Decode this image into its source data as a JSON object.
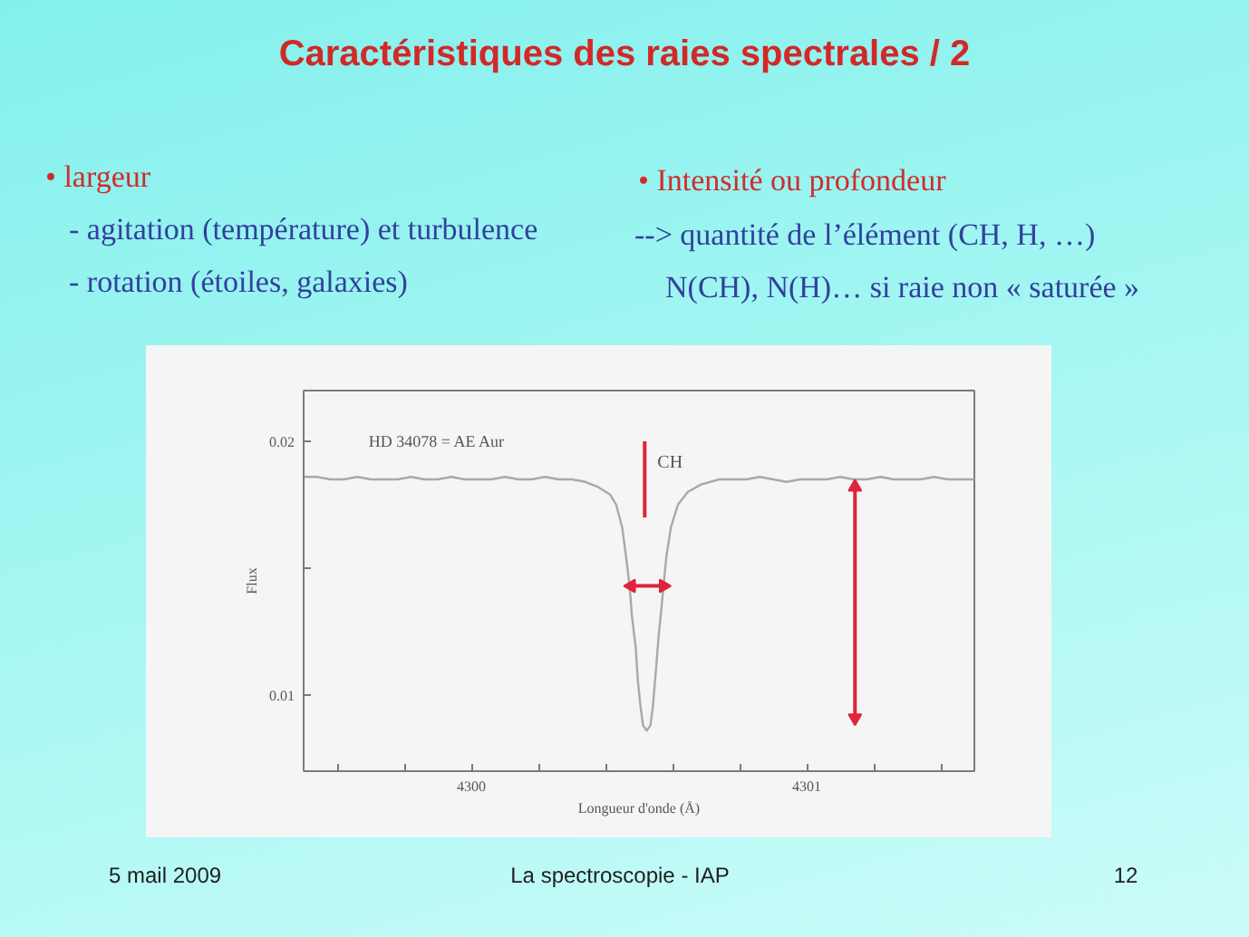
{
  "chart_data": {
    "type": "line",
    "title": "Caractéristiques des raies spectrales / 2",
    "xlabel": "Longueur d'onde (Å)",
    "ylabel": "Flux",
    "annotations": [
      "• largeur",
      "- agitation (température) et turbulence",
      "- rotation (étoiles, galaxies)",
      "• Intensité ou profondeur",
      "--> quantité de l’élément (CH, H, …)",
      "N(CH), N(H)… si raie non « saturée »",
      "HD 34078 = AE Aur",
      "5 mail 2009",
      "La spectroscopie - IAP",
      "12"
    ],
    "xlim": [
      4299.5,
      4301.5
    ],
    "ylim": [
      0.007,
      0.022
    ],
    "xticks": [
      {
        "value": 4299.6,
        "label": null
      },
      {
        "value": 4299.8,
        "label": null
      },
      4300,
      {
        "value": 4300.2,
        "label": null
      },
      {
        "value": 4300.4,
        "label": null
      },
      {
        "value": 4300.6,
        "label": null
      },
      {
        "value": 4300.8,
        "label": null
      },
      4301,
      {
        "value": 4301.2,
        "label": null
      },
      {
        "value": 4301.4,
        "label": null
      }
    ],
    "yticks": [
      0.01,
      {
        "value": 0.015,
        "label": null
      },
      0.02
    ],
    "series": [
      {
        "color": "#a9a9a9",
        "x": [
          4299.5,
          4299.54,
          4299.58,
          4299.62,
          4299.66,
          4299.7,
          4299.74,
          4299.78,
          4299.82,
          4299.86,
          4299.9,
          4299.94,
          4299.98,
          4300.02,
          4300.06,
          4300.1,
          4300.14,
          4300.18,
          4300.22,
          4300.26,
          4300.3,
          4300.34,
          4300.378,
          4300.414,
          4300.432,
          4300.45,
          4300.461,
          4300.472,
          4300.479,
          4300.49,
          4300.497,
          4300.505,
          4300.512,
          4300.523,
          4300.534,
          4300.541,
          4300.55,
          4300.559,
          4300.566,
          4300.573,
          4300.582,
          4300.595,
          4300.616,
          4300.645,
          4300.685,
          4300.739,
          4300.78,
          4300.82,
          4300.86,
          4300.9,
          4300.94,
          4300.98,
          4301.02,
          4301.06,
          4301.1,
          4301.14,
          4301.18,
          4301.22,
          4301.26,
          4301.3,
          4301.34,
          4301.38,
          4301.42,
          4301.46,
          4301.5
        ],
        "values": [
          0.0186,
          0.0186,
          0.0185,
          0.0185,
          0.0186,
          0.0185,
          0.0185,
          0.0185,
          0.0186,
          0.0185,
          0.0185,
          0.0186,
          0.0185,
          0.0185,
          0.0185,
          0.0186,
          0.0185,
          0.0185,
          0.0186,
          0.0185,
          0.0185,
          0.0184,
          0.0182,
          0.0179,
          0.0175,
          0.0166,
          0.0155,
          0.0143,
          0.0131,
          0.0119,
          0.0105,
          0.0095,
          0.0088,
          0.0086,
          0.0088,
          0.0095,
          0.0109,
          0.0124,
          0.0133,
          0.0143,
          0.0155,
          0.0166,
          0.0175,
          0.018,
          0.0183,
          0.0185,
          0.0185,
          0.0185,
          0.0186,
          0.0185,
          0.0184,
          0.0185,
          0.0185,
          0.0185,
          0.0186,
          0.0185,
          0.0185,
          0.0186,
          0.0185,
          0.0185,
          0.0185,
          0.0186,
          0.0185,
          0.0185,
          0.0185
        ]
      },
      {
        "name": "CH",
        "color": "#e0243c",
        "x": [
          4300.517,
          4300.517
        ],
        "values": [
          0.02,
          0.017
        ]
      },
      {
        "color": "#e0243c",
        "x": [
          4300.477,
          4300.573
        ],
        "values": [
          0.0143,
          0.0143
        ],
        "marker": "triangle"
      },
      {
        "color": "#e0243c",
        "x": [
          4301.144,
          4301.144
        ],
        "values": [
          0.0182,
          0.0091
        ],
        "marker": "triangle"
      }
    ]
  }
}
